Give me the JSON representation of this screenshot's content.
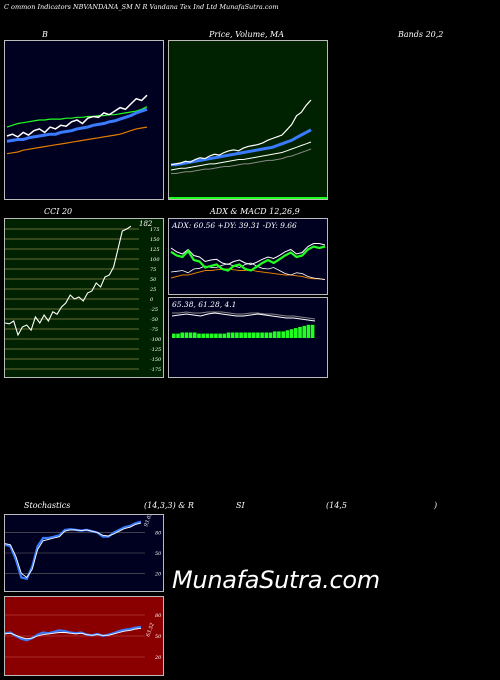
{
  "page": {
    "title": "C                ommon  Indicators NBVANDANA_SM N  R Vandana  Tex Ind Ltd MunafaSutra.com",
    "watermark": "MunafaSutra.com"
  },
  "labels": {
    "b": "B",
    "price": "Price,  Volume,  MA",
    "bands": "Bands 20,2",
    "cci": "CCI 20",
    "adx_macd": "ADX  & MACD 12,26,9",
    "stoch_a": "Stochastics",
    "stoch_b": "(14,3,3) & R",
    "stoch_c": "SI",
    "stoch_d": "(14,5",
    "stoch_e": ")"
  },
  "colors": {
    "bollinger_bg": "#000020",
    "price_bg": "#002200",
    "cci_bg": "#002200",
    "adx_bg": "#000020",
    "stoch_bg": "#000020",
    "rsi_bg": "#8a0000",
    "white": "#ffffff",
    "blue": "#3a7bff",
    "green": "#21ff21",
    "orange": "#e07b00",
    "grey": "#888888"
  },
  "chart_data": [
    {
      "id": "bollinger",
      "type": "line",
      "title": "B",
      "series": [
        {
          "values": [
            62,
            64,
            61,
            66,
            63,
            68,
            70,
            66,
            72,
            70,
            74,
            73,
            78,
            80,
            76,
            82,
            84,
            83,
            88,
            86,
            90,
            94,
            92,
            98,
            104,
            102,
            108
          ]
        },
        {
          "values": [
            56,
            57,
            58,
            58,
            60,
            61,
            62,
            63,
            64,
            64,
            66,
            67,
            68,
            70,
            71,
            72,
            74,
            75,
            76,
            78,
            79,
            81,
            83,
            85,
            88,
            90,
            92
          ]
        },
        {
          "values": [
            72,
            74,
            76,
            77,
            78,
            79,
            80,
            80,
            81,
            81,
            81,
            82,
            82,
            83,
            83,
            84,
            84,
            85,
            85,
            86,
            86,
            87,
            88,
            89,
            90,
            92,
            95
          ]
        },
        {
          "values": [
            42,
            43,
            44,
            46,
            47,
            48,
            49,
            50,
            51,
            52,
            53,
            54,
            55,
            56,
            57,
            58,
            59,
            60,
            61,
            62,
            63,
            64,
            66,
            68,
            70,
            71,
            72
          ]
        }
      ]
    },
    {
      "id": "price",
      "type": "line",
      "title": "Price,  Volume,  MA",
      "series": [
        {
          "values": [
            30,
            31,
            32,
            34,
            33,
            36,
            38,
            37,
            40,
            42,
            41,
            44,
            46,
            47,
            46,
            49,
            51,
            52,
            53,
            55,
            58,
            60,
            62,
            64,
            70,
            76,
            86,
            90,
            98,
            104
          ]
        },
        {
          "values": [
            30,
            30,
            31,
            32,
            33,
            34,
            35,
            36,
            37,
            38,
            39,
            40,
            41,
            42,
            43,
            44,
            45,
            46,
            47,
            48,
            49,
            50,
            52,
            54,
            56,
            58,
            61,
            64,
            67,
            70
          ]
        },
        {
          "values": [
            24,
            25,
            26,
            26,
            27,
            28,
            29,
            30,
            31,
            31,
            32,
            33,
            34,
            35,
            36,
            36,
            37,
            38,
            39,
            40,
            41,
            42,
            43,
            44,
            46,
            48,
            50,
            52,
            54,
            56
          ]
        },
        {
          "values": [
            20,
            20,
            21,
            22,
            22,
            23,
            24,
            25,
            25,
            26,
            27,
            28,
            28,
            29,
            30,
            31,
            31,
            32,
            33,
            34,
            35,
            35,
            36,
            37,
            39,
            40,
            42,
            44,
            46,
            48
          ]
        }
      ]
    },
    {
      "id": "cci",
      "type": "line",
      "title": "CCI 20",
      "ylim": [
        -175,
        175
      ],
      "yticks": [
        175,
        150,
        125,
        100,
        75,
        50,
        25,
        0,
        -25,
        -50,
        -75,
        -100,
        -125,
        -150,
        -175
      ],
      "last_value_label": "182",
      "values": [
        -60,
        -62,
        -55,
        -90,
        -70,
        -65,
        -78,
        -45,
        -60,
        -40,
        -55,
        -32,
        -38,
        -20,
        -10,
        10,
        0,
        5,
        -5,
        15,
        20,
        40,
        30,
        55,
        60,
        80,
        125,
        170,
        175,
        182
      ]
    },
    {
      "id": "adx",
      "type": "line",
      "title": "ADX  & MACD 12,26,9",
      "summary": "ADX: 60.56  +DY: 39.31 -DY: 9.66",
      "series": [
        {
          "values": [
            60,
            55,
            52,
            58,
            50,
            48,
            42,
            44,
            45,
            40,
            38,
            42,
            44,
            40,
            38,
            41,
            45,
            48,
            46,
            50,
            55,
            58,
            52,
            54,
            62,
            66,
            66,
            64
          ]
        },
        {
          "values": [
            55,
            50,
            48,
            56,
            44,
            42,
            34,
            36,
            38,
            32,
            30,
            36,
            38,
            32,
            30,
            35,
            40,
            44,
            40,
            45,
            50,
            54,
            48,
            50,
            58,
            62,
            60,
            62
          ]
        },
        {
          "values": [
            28,
            29,
            30,
            27,
            32,
            33,
            36,
            34,
            34,
            37,
            39,
            36,
            34,
            38,
            40,
            36,
            33,
            32,
            34,
            30,
            26,
            24,
            27,
            26,
            22,
            20,
            19,
            18
          ]
        },
        {
          "values": [
            20,
            22,
            24,
            24,
            26,
            28,
            30,
            30,
            31,
            32,
            32,
            31,
            30,
            30,
            31,
            29,
            28,
            27,
            26,
            25,
            24,
            24,
            23,
            22,
            20,
            19,
            19,
            18
          ]
        }
      ]
    },
    {
      "id": "macd",
      "type": "bar",
      "summary": "65.38,  61.28,  4.1",
      "values": [
        4,
        4,
        5,
        5,
        5,
        5,
        4,
        4,
        4,
        4,
        4,
        4,
        4,
        5,
        5,
        5,
        5,
        5,
        5,
        5,
        5,
        5,
        5,
        5,
        6,
        6,
        6,
        7,
        8,
        9,
        10,
        11,
        12,
        12
      ]
    },
    {
      "id": "stochastics",
      "type": "line",
      "title": "Stochastics (14,3,3) & R SI (14,5 )",
      "ylim": [
        0,
        100
      ],
      "yticks": [
        80,
        50,
        20
      ],
      "last_value_label": "93.03",
      "series": [
        {
          "values": [
            62,
            60,
            40,
            14,
            12,
            30,
            60,
            72,
            72,
            74,
            76,
            84,
            85,
            84,
            83,
            84,
            82,
            80,
            74,
            74,
            80,
            84,
            88,
            90,
            94,
            96
          ]
        },
        {
          "values": [
            64,
            62,
            45,
            20,
            14,
            26,
            55,
            68,
            70,
            72,
            74,
            82,
            84,
            84,
            83,
            84,
            82,
            80,
            76,
            75,
            78,
            82,
            86,
            88,
            92,
            94
          ]
        }
      ]
    },
    {
      "id": "rsi",
      "type": "line",
      "ylim": [
        0,
        100
      ],
      "yticks": [
        80,
        50,
        20
      ],
      "last_value_label": "63.52",
      "series": [
        {
          "values": [
            54,
            55,
            50,
            46,
            44,
            47,
            52,
            55,
            54,
            56,
            58,
            57,
            55,
            54,
            55,
            52,
            51,
            53,
            50,
            52,
            54,
            57,
            59,
            60,
            62,
            63
          ]
        },
        {
          "values": [
            53,
            54,
            51,
            48,
            46,
            47,
            50,
            52,
            53,
            54,
            55,
            55,
            54,
            53,
            54,
            52,
            51,
            52,
            51,
            51,
            53,
            55,
            57,
            58,
            60,
            61
          ]
        }
      ]
    }
  ]
}
